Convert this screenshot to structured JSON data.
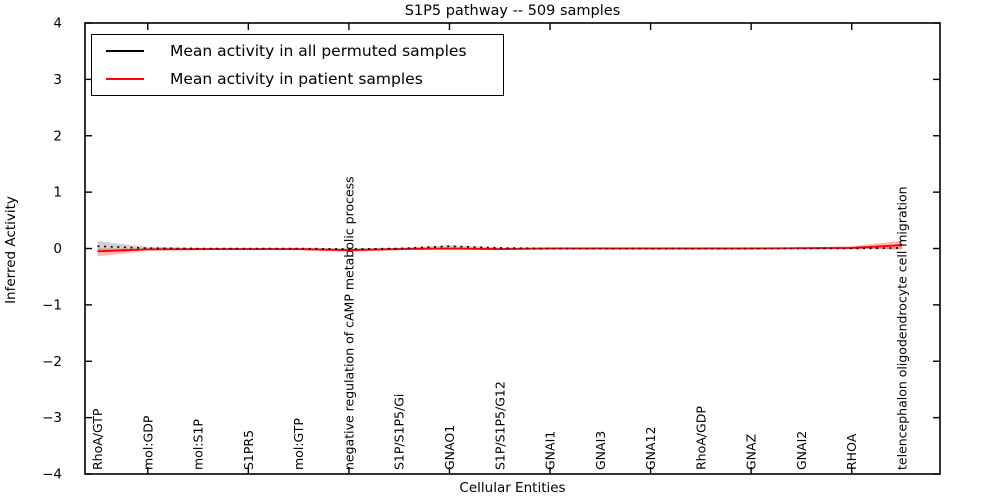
{
  "figure": {
    "background": "#ffffff",
    "frame_color": "#000000"
  },
  "chart_data": {
    "type": "line",
    "title": "S1P5 pathway -- 509 samples",
    "xlabel": "Cellular Entities",
    "ylabel": "Inferred Activity",
    "ylim": [
      -4,
      4
    ],
    "yticks": [
      4,
      3,
      2,
      1,
      0,
      -1,
      -2,
      -3,
      -4
    ],
    "ytick_labels": [
      "4",
      "3",
      "2",
      "1",
      "0",
      "−1",
      "−2",
      "−3",
      "−4"
    ],
    "grid": false,
    "legend_position": "upper left",
    "categories": [
      "RhoA/GTP",
      "mol:GDP",
      "mol:S1P",
      "S1PR5",
      "mol:GTP",
      "negative regulation of cAMP metabolic process",
      "S1P/S1P5/Gi",
      "GNAO1",
      "S1P/S1P5/G12",
      "GNAI1",
      "GNAI3",
      "GNA12",
      "RhoA/GDP",
      "GNAZ",
      "GNAI2",
      "RHOA",
      "telencephalon oligodendrocyte cell migration"
    ],
    "xtick_category_indices": [
      1,
      3,
      5,
      7,
      9,
      11,
      13,
      15
    ],
    "series": [
      {
        "name": "Mean activity in all permuted samples",
        "color": "#000000",
        "line_style": "dotted",
        "values": [
          0.04,
          0.005,
          0.0,
          0.0,
          0.0,
          -0.01,
          0.0,
          0.04,
          0.01,
          0.0,
          0.0,
          0.0,
          0.0,
          0.0,
          0.0,
          0.0,
          0.01
        ],
        "band_hi": [
          0.13,
          0.03,
          0.01,
          0.01,
          0.01,
          0.01,
          0.01,
          0.06,
          0.02,
          0.01,
          0.01,
          0.01,
          0.01,
          0.01,
          0.01,
          0.01,
          0.03
        ],
        "band_lo": [
          -0.03,
          -0.01,
          -0.01,
          -0.01,
          -0.01,
          -0.03,
          -0.01,
          0.02,
          0.0,
          -0.01,
          -0.01,
          -0.01,
          -0.01,
          -0.01,
          -0.01,
          -0.01,
          -0.02
        ],
        "band_color": "rgba(0,0,0,0.18)"
      },
      {
        "name": "Mean activity in patient samples",
        "color": "#ff0000",
        "line_style": "solid",
        "values": [
          -0.05,
          -0.015,
          -0.01,
          -0.01,
          -0.01,
          -0.03,
          -0.01,
          0.0,
          -0.01,
          0.0,
          0.0,
          0.0,
          0.0,
          0.0,
          0.005,
          0.01,
          0.06
        ],
        "band_hi": [
          0.0,
          0.0,
          0.0,
          0.0,
          0.0,
          -0.01,
          0.01,
          0.01,
          0.0,
          0.01,
          0.01,
          0.01,
          0.01,
          0.01,
          0.02,
          0.04,
          0.14
        ],
        "band_lo": [
          -0.14,
          -0.04,
          -0.03,
          -0.03,
          -0.03,
          -0.06,
          -0.03,
          -0.01,
          -0.03,
          -0.01,
          -0.01,
          -0.01,
          -0.01,
          -0.01,
          -0.01,
          -0.01,
          -0.01
        ],
        "band_color": "rgba(255,0,0,0.28)"
      }
    ]
  }
}
